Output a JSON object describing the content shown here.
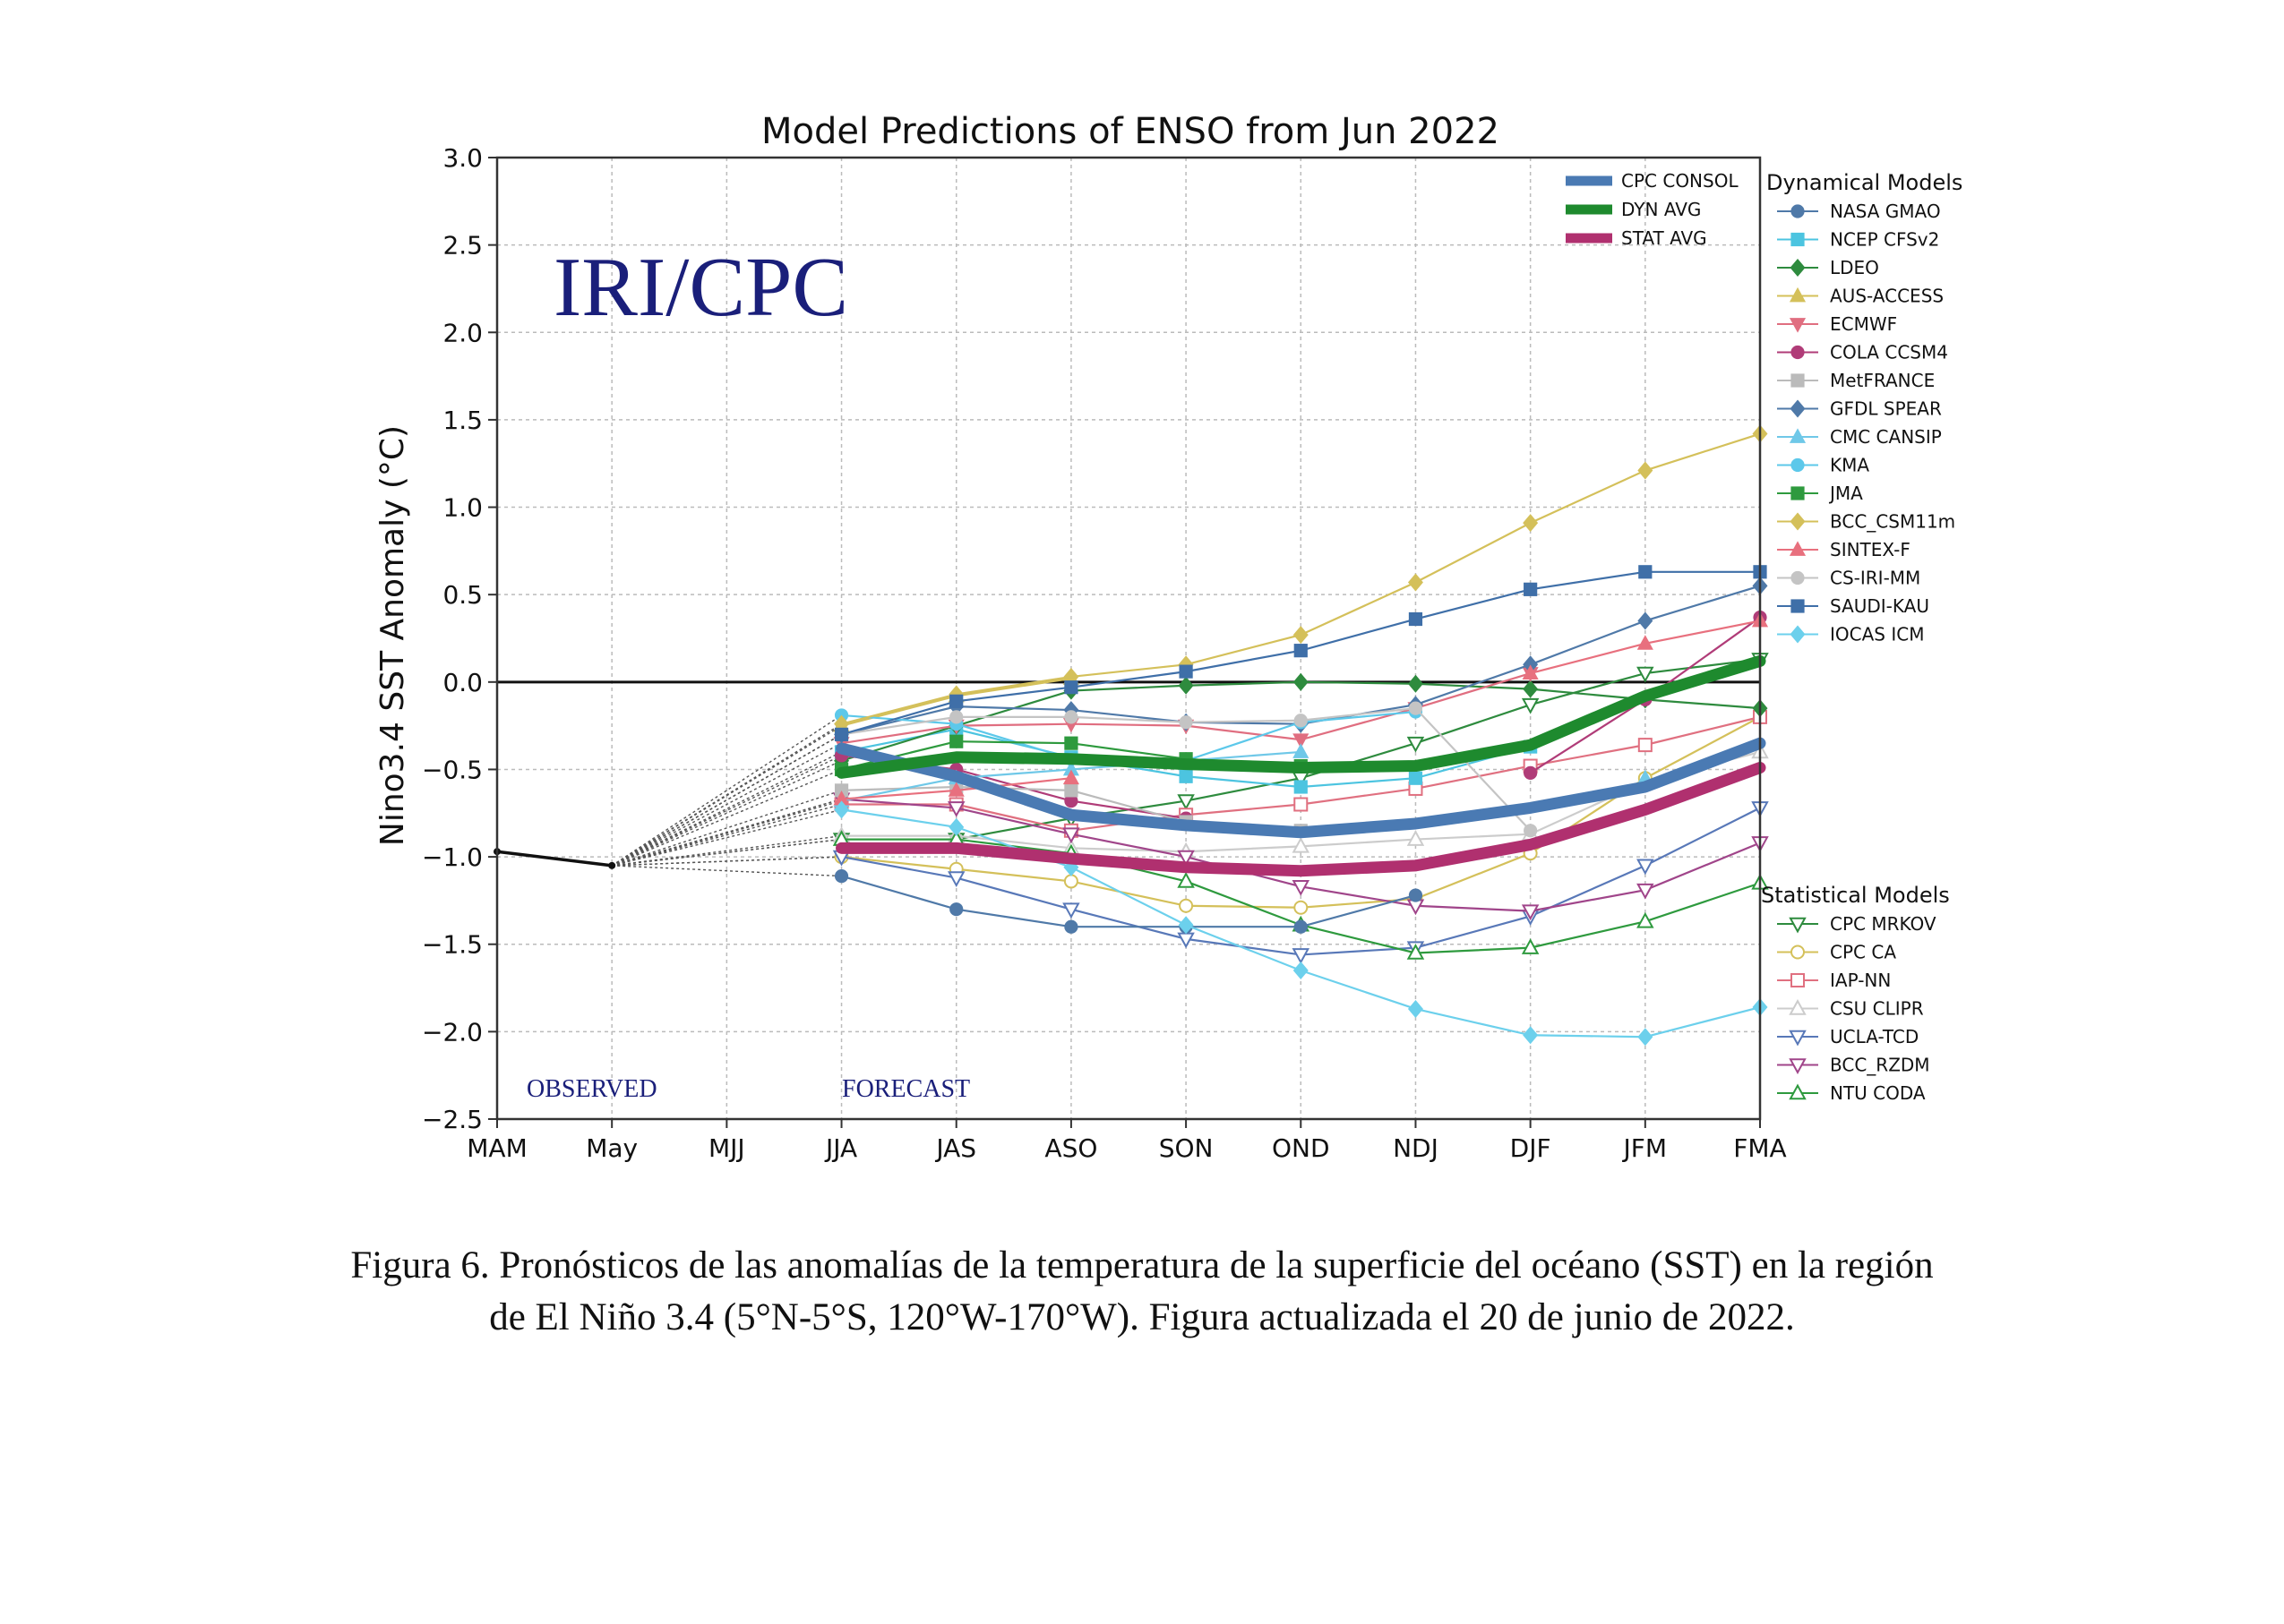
{
  "caption": {
    "line1": "Figura 6. Pronósticos de las anomalías de la temperatura de la superficie del océano (SST) en la región",
    "line2": "de El Niño 3.4 (5°N-5°S, 120°W-170°W). Figura actualizada el 20 de junio de 2022."
  },
  "chart_data": {
    "type": "line",
    "title": "Model Predictions of ENSO from Jun 2022",
    "ylabel": "Nino3.4 SST Anomaly (°C)",
    "watermark": "IRI/CPC",
    "observed_label": "OBSERVED",
    "forecast_label": "FORECAST",
    "ylim": [
      -2.5,
      3.0
    ],
    "ytick_labels": [
      "3.0",
      "2.5",
      "2.0",
      "1.5",
      "1.0",
      "0.5",
      "0.0",
      "−0.5",
      "−1.0",
      "−1.5",
      "−2.0",
      "−2.5"
    ],
    "categories": [
      "MAM",
      "May",
      "MJJ",
      "JJA",
      "JAS",
      "ASO",
      "SON",
      "OND",
      "NDJ",
      "DJF",
      "JFM",
      "FMA"
    ],
    "grid": true,
    "legend_dynamical_title": "Dynamical Models",
    "legend_statistical_title": "Statistical Models",
    "legend_placement": "right",
    "observed": [
      -0.97,
      -1.05
    ],
    "forecast_start_index": 3,
    "average_series": [
      {
        "name": "CPC CONSOL",
        "color": "#4a7ab3",
        "values": [
          -0.38,
          -0.54,
          -0.76,
          -0.82,
          -0.86,
          -0.81,
          -0.72,
          -0.6,
          -0.35
        ]
      },
      {
        "name": "DYN AVG",
        "color": "#1e8a2e",
        "values": [
          -0.52,
          -0.43,
          -0.44,
          -0.47,
          -0.49,
          -0.48,
          -0.36,
          -0.08,
          0.12
        ]
      },
      {
        "name": "STAT AVG",
        "color": "#b0306f",
        "values": [
          -0.95,
          -0.95,
          -1.01,
          -1.06,
          -1.08,
          -1.05,
          -0.93,
          -0.73,
          -0.49
        ]
      }
    ],
    "dynamical_models": [
      {
        "name": "NASA GMAO",
        "color": "#4f79a8",
        "marker": "circle",
        "values": [
          -1.11,
          -1.3,
          -1.4,
          -1.4,
          -1.4,
          -1.22,
          null,
          null,
          null
        ]
      },
      {
        "name": "NCEP CFSv2",
        "color": "#4cc4e0",
        "marker": "square",
        "values": [
          -0.4,
          -0.27,
          -0.43,
          -0.54,
          -0.6,
          -0.55,
          -0.37,
          null,
          null
        ]
      },
      {
        "name": "LDEO",
        "color": "#2e8b3e",
        "marker": "diamond",
        "values": [
          -0.45,
          -0.25,
          -0.05,
          -0.02,
          0.0,
          -0.01,
          -0.04,
          -0.1,
          -0.15
        ]
      },
      {
        "name": "AUS-ACCESS",
        "color": "#d4c05a",
        "marker": "triangle",
        "values": [
          -0.25,
          -0.08,
          0.02,
          null,
          null,
          null,
          null,
          null,
          null
        ]
      },
      {
        "name": "ECMWF",
        "color": "#e06e80",
        "marker": "triangle-down",
        "values": [
          -0.35,
          -0.25,
          -0.24,
          -0.25,
          -0.33,
          -0.15,
          0.05,
          null,
          null
        ]
      },
      {
        "name": "COLA CCSM4",
        "color": "#b03c78",
        "marker": "circle",
        "values": [
          -0.42,
          -0.5,
          -0.68,
          -0.78,
          null,
          null,
          -0.52,
          -0.1,
          0.37
        ]
      },
      {
        "name": "MetFRANCE",
        "color": "#bbbbbb",
        "marker": "square",
        "values": [
          -0.62,
          -0.6,
          -0.62,
          -0.8,
          -0.85,
          null,
          null,
          null,
          null
        ]
      },
      {
        "name": "GFDL SPEAR",
        "color": "#4f79a8",
        "marker": "diamond",
        "values": [
          -0.3,
          -0.14,
          -0.16,
          -0.23,
          -0.24,
          -0.13,
          0.1,
          0.35,
          0.55
        ]
      },
      {
        "name": "CMC CANSIP",
        "color": "#6fc8e8",
        "marker": "triangle",
        "values": [
          -0.68,
          -0.55,
          -0.5,
          -0.45,
          -0.4,
          null,
          null,
          -0.55,
          null
        ]
      },
      {
        "name": "KMA",
        "color": "#5cc8ea",
        "marker": "circle",
        "values": [
          -0.19,
          -0.24,
          -0.44,
          -0.45,
          -0.23,
          -0.17,
          null,
          null,
          null
        ]
      },
      {
        "name": "JMA",
        "color": "#2e9a3e",
        "marker": "square",
        "values": [
          -0.5,
          -0.34,
          -0.35,
          -0.44,
          -0.48,
          null,
          null,
          null,
          null
        ]
      },
      {
        "name": "BCC_CSM11m",
        "color": "#d4c05a",
        "marker": "diamond",
        "values": [
          -0.24,
          -0.07,
          0.03,
          0.1,
          0.27,
          0.57,
          0.91,
          1.21,
          1.42
        ]
      },
      {
        "name": "SINTEX-F",
        "color": "#e8707e",
        "marker": "triangle",
        "values": [
          -0.67,
          -0.62,
          -0.55,
          null,
          null,
          null,
          0.05,
          0.22,
          0.35
        ]
      },
      {
        "name": "CS-IRI-MM",
        "color": "#c4c4c4",
        "marker": "circle",
        "values": [
          -0.3,
          -0.2,
          -0.2,
          -0.23,
          -0.22,
          -0.15,
          -0.85,
          null,
          null
        ]
      },
      {
        "name": "SAUDI-KAU",
        "color": "#3f6fa8",
        "marker": "square",
        "values": [
          -0.3,
          -0.11,
          -0.03,
          0.06,
          0.18,
          0.36,
          0.53,
          0.63,
          0.63
        ]
      },
      {
        "name": "IOCAS ICM",
        "color": "#6cd0ec",
        "marker": "diamond",
        "values": [
          -0.73,
          -0.83,
          -1.06,
          -1.39,
          -1.65,
          -1.87,
          -2.02,
          -2.03,
          -1.86
        ]
      }
    ],
    "statistical_models": [
      {
        "name": "CPC MRKOV",
        "color": "#2e8b3e",
        "marker": "triangle-down-open",
        "values": [
          -0.9,
          -0.9,
          -0.78,
          -0.68,
          -0.55,
          -0.35,
          -0.13,
          0.05,
          0.13
        ]
      },
      {
        "name": "CPC CA",
        "color": "#d4c05a",
        "marker": "circle-open",
        "values": [
          -1.0,
          -1.07,
          -1.14,
          -1.28,
          -1.29,
          -1.24,
          -0.98,
          -0.55,
          -0.2
        ]
      },
      {
        "name": "IAP-NN",
        "color": "#e07080",
        "marker": "square-open",
        "values": [
          -0.7,
          -0.7,
          -0.85,
          -0.76,
          -0.7,
          -0.61,
          -0.48,
          -0.36,
          -0.2
        ]
      },
      {
        "name": "CSU CLIPR",
        "color": "#cccccc",
        "marker": "triangle-open",
        "values": [
          -0.88,
          -0.88,
          -0.95,
          -0.97,
          -0.94,
          -0.9,
          -0.87,
          -0.57,
          -0.4
        ]
      },
      {
        "name": "UCLA-TCD",
        "color": "#5878b8",
        "marker": "triangle-down-open",
        "values": [
          -1.0,
          -1.12,
          -1.3,
          -1.47,
          -1.56,
          -1.52,
          -1.34,
          -1.05,
          -0.72
        ]
      },
      {
        "name": "BCC_RZDM",
        "color": "#a0458a",
        "marker": "triangle-down-open",
        "values": [
          -0.67,
          -0.72,
          -0.87,
          -1.0,
          -1.17,
          -1.28,
          -1.31,
          -1.19,
          -0.92
        ]
      },
      {
        "name": "NTU CODA",
        "color": "#2e9a3e",
        "marker": "triangle-open",
        "values": [
          -0.9,
          -0.9,
          -0.98,
          -1.14,
          -1.39,
          -1.55,
          -1.52,
          -1.37,
          -1.15
        ]
      }
    ]
  }
}
